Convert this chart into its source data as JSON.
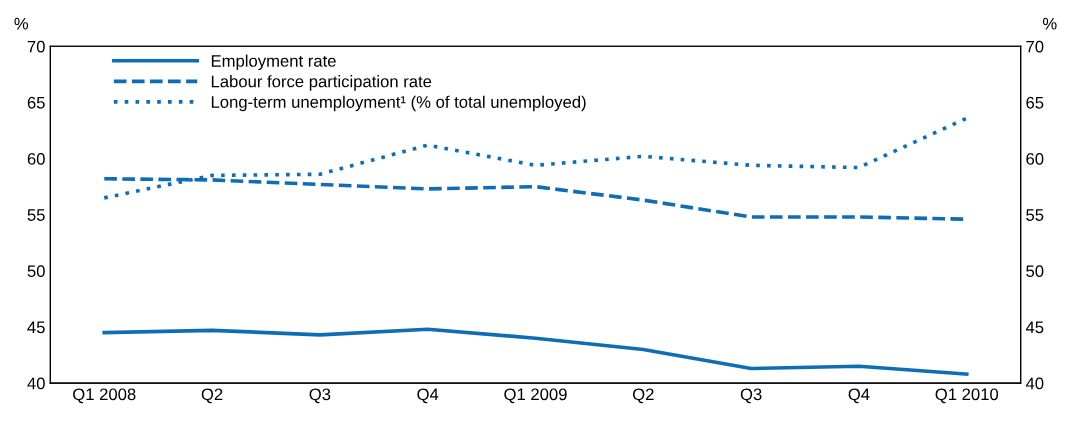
{
  "chart_data": {
    "type": "line",
    "ylabel": "%",
    "y2label": "%",
    "categories": [
      "Q1 2008",
      "Q2",
      "Q3",
      "Q4",
      "Q1 2009",
      "Q2",
      "Q3",
      "Q4",
      "Q1 2010"
    ],
    "series": [
      {
        "name": "Employment rate",
        "color": "#0f6db5",
        "line_style": "solid",
        "values": [
          44.5,
          44.7,
          44.3,
          44.8,
          44.0,
          43.0,
          41.3,
          41.5,
          40.8
        ]
      },
      {
        "name": "Labour force participation rate",
        "color": "#0f6db5",
        "line_style": "dashed",
        "values": [
          58.2,
          58.1,
          57.7,
          57.3,
          57.5,
          56.3,
          54.8,
          54.8,
          54.6
        ]
      },
      {
        "name": "Long-term unemployment¹ (% of total unemployed)",
        "color": "#0f6db5",
        "line_style": "dotted",
        "values": [
          56.5,
          58.5,
          58.6,
          61.2,
          59.4,
          60.2,
          59.4,
          59.2,
          63.6
        ]
      }
    ],
    "ylim": [
      40,
      70
    ],
    "yticks": [
      40,
      45,
      50,
      55,
      60,
      65,
      70
    ],
    "y2lim": [
      40,
      70
    ],
    "y2ticks": [
      40,
      45,
      50,
      55,
      60,
      65,
      70
    ],
    "grid": false,
    "legend": "top left",
    "marker": "none"
  }
}
